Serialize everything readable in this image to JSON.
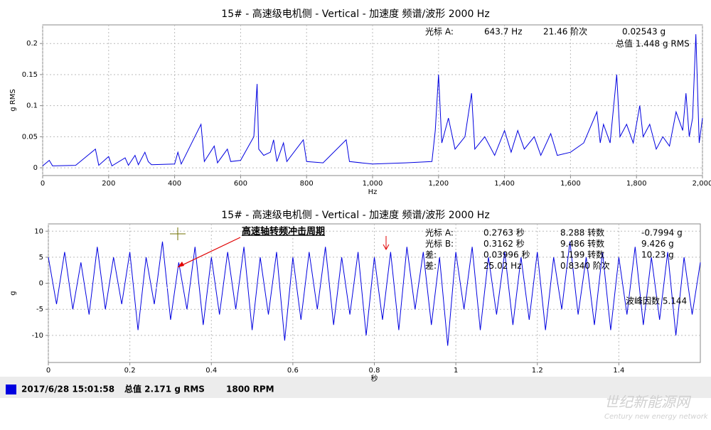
{
  "chart_data": [
    {
      "type": "line",
      "title": "15# - 高速级电机侧 - Vertical - 加速度 频谱/波形 2000 Hz",
      "x_label": "Hz",
      "y_label": "g RMS",
      "x": [
        0,
        20,
        30,
        100,
        160,
        170,
        200,
        210,
        250,
        260,
        280,
        290,
        310,
        320,
        330,
        400,
        410,
        420,
        480,
        490,
        520,
        530,
        560,
        570,
        600,
        640,
        650,
        655,
        670,
        690,
        700,
        710,
        730,
        740,
        790,
        800,
        850,
        920,
        930,
        1000,
        1100,
        1180,
        1190,
        1200,
        1210,
        1230,
        1250,
        1280,
        1300,
        1310,
        1340,
        1370,
        1400,
        1420,
        1440,
        1460,
        1490,
        1510,
        1540,
        1560,
        1600,
        1640,
        1680,
        1690,
        1700,
        1720,
        1740,
        1750,
        1770,
        1790,
        1810,
        1820,
        1840,
        1860,
        1880,
        1900,
        1920,
        1940,
        1950,
        1960,
        1970,
        1980,
        1990,
        2000
      ],
      "series": [
        {
          "color": "#0000e0",
          "values": [
            0.003,
            0.012,
            0.003,
            0.004,
            0.03,
            0.004,
            0.018,
            0.003,
            0.016,
            0.004,
            0.02,
            0.005,
            0.025,
            0.01,
            0.005,
            0.006,
            0.025,
            0.006,
            0.07,
            0.01,
            0.035,
            0.008,
            0.03,
            0.01,
            0.012,
            0.05,
            0.135,
            0.03,
            0.02,
            0.025,
            0.045,
            0.01,
            0.04,
            0.01,
            0.045,
            0.01,
            0.008,
            0.045,
            0.01,
            0.006,
            0.008,
            0.01,
            0.06,
            0.15,
            0.04,
            0.08,
            0.03,
            0.05,
            0.12,
            0.03,
            0.05,
            0.02,
            0.06,
            0.025,
            0.06,
            0.03,
            0.05,
            0.02,
            0.055,
            0.02,
            0.025,
            0.04,
            0.09,
            0.04,
            0.07,
            0.04,
            0.15,
            0.05,
            0.07,
            0.04,
            0.1,
            0.05,
            0.07,
            0.03,
            0.05,
            0.035,
            0.09,
            0.06,
            0.12,
            0.05,
            0.08,
            0.215,
            0.04,
            0.08
          ]
        }
      ],
      "xlim": [
        0,
        2000
      ],
      "xticks": [
        0,
        200,
        400,
        600,
        800,
        {
          "value": 1000,
          "label": "1,000"
        },
        {
          "value": 1200,
          "label": "1,200"
        },
        {
          "value": 1400,
          "label": "1,400"
        },
        {
          "value": 1600,
          "label": "1,600"
        },
        {
          "value": 1800,
          "label": "1,800"
        },
        {
          "value": 2000,
          "label": "2,000"
        }
      ],
      "ylim": [
        -0.0125,
        0.23
      ],
      "yticks": [
        0,
        0.05,
        0.1,
        0.15,
        0.2
      ],
      "grid": true,
      "annotations": [
        "光标 A:",
        "643.7 Hz",
        "21.46 阶次",
        "0.02543 g",
        "总值 1.448 g RMS"
      ]
    },
    {
      "type": "line",
      "title": "15# - 高速级电机侧 - Vertical - 加速度 频谱/波形 2000 Hz",
      "x_label": "秒",
      "y_label": "g",
      "x": [
        0,
        0.02,
        0.04,
        0.06,
        0.08,
        0.1,
        0.12,
        0.14,
        0.16,
        0.18,
        0.2,
        0.22,
        0.24,
        0.26,
        0.28,
        0.3,
        0.32,
        0.34,
        0.36,
        0.38,
        0.4,
        0.42,
        0.44,
        0.46,
        0.48,
        0.5,
        0.52,
        0.54,
        0.56,
        0.58,
        0.6,
        0.62,
        0.64,
        0.66,
        0.68,
        0.7,
        0.72,
        0.74,
        0.76,
        0.78,
        0.8,
        0.82,
        0.84,
        0.86,
        0.88,
        0.9,
        0.92,
        0.94,
        0.96,
        0.98,
        1,
        1.02,
        1.04,
        1.06,
        1.08,
        1.1,
        1.12,
        1.14,
        1.16,
        1.18,
        1.2,
        1.22,
        1.24,
        1.26,
        1.28,
        1.3,
        1.32,
        1.34,
        1.36,
        1.38,
        1.4,
        1.42,
        1.44,
        1.46,
        1.48,
        1.5,
        1.52,
        1.54,
        1.56,
        1.58,
        1.6
      ],
      "series": [
        {
          "color": "#0000e0",
          "values": [
            5,
            -4,
            6,
            -5,
            4,
            -6,
            7,
            -5,
            5,
            -4,
            6,
            -9,
            5,
            -4,
            8,
            -7,
            4,
            -5,
            7,
            -8,
            5,
            -6,
            6,
            -5,
            7,
            -9,
            5,
            -6,
            6,
            -11,
            5,
            -7,
            6,
            -5,
            7,
            -8,
            5,
            -6,
            6,
            -10,
            5,
            -7,
            6,
            -9,
            7,
            -5,
            6,
            -8,
            5,
            -12,
            6,
            -5,
            7,
            -9,
            5,
            -6,
            6,
            -8,
            5,
            -7,
            6,
            -9,
            5,
            -5,
            8,
            -6,
            5,
            -8,
            6,
            -9,
            5,
            -6,
            7,
            -8,
            5,
            -7,
            6,
            -10,
            5,
            -6,
            4
          ]
        }
      ],
      "xlim": [
        0,
        1.6
      ],
      "xticks": [
        0,
        0.2,
        0.4,
        0.6,
        0.8,
        1,
        1.2,
        1.4
      ],
      "ylim": [
        -15.2,
        11.4
      ],
      "yticks": [
        -10,
        -5,
        0,
        5,
        10
      ],
      "grid": true,
      "note": "高速轴转频冲击周期",
      "cursor_table": [
        [
          "光标 A:",
          "0.2763 秒",
          "8.288 转数",
          "-0.7994 g"
        ],
        [
          "光标 B:",
          "0.3162 秒",
          "9.486 转数",
          "9.426 g"
        ],
        [
          "差:",
          "0.03996 秒",
          "1.199 转数",
          "10.23 g"
        ],
        [
          "差:",
          "25.02 Hz",
          "0.8340 阶次"
        ]
      ],
      "crest": "波峰因数 5.144"
    }
  ],
  "status_bar": {
    "timestamp": "2017/6/28 15:01:58",
    "total": "总值 2.171 g RMS",
    "rpm": "1800 RPM"
  },
  "watermark": {
    "name": "世纪新能源网",
    "subtitle": "Century new energy network"
  }
}
